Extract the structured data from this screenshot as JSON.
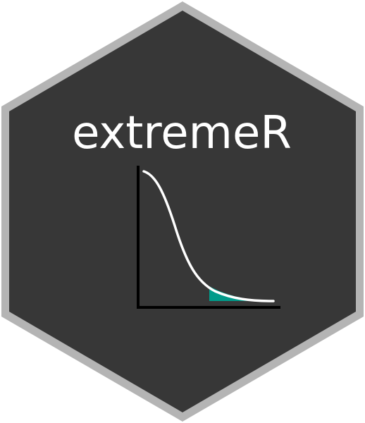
{
  "logo": {
    "title": "extremeR",
    "colors": {
      "border": "#b4b4b4",
      "background": "#373737",
      "text": "#ffffff",
      "curve": "#ffffff",
      "axes": "#000000",
      "tail_fill": "#009b8a"
    }
  }
}
